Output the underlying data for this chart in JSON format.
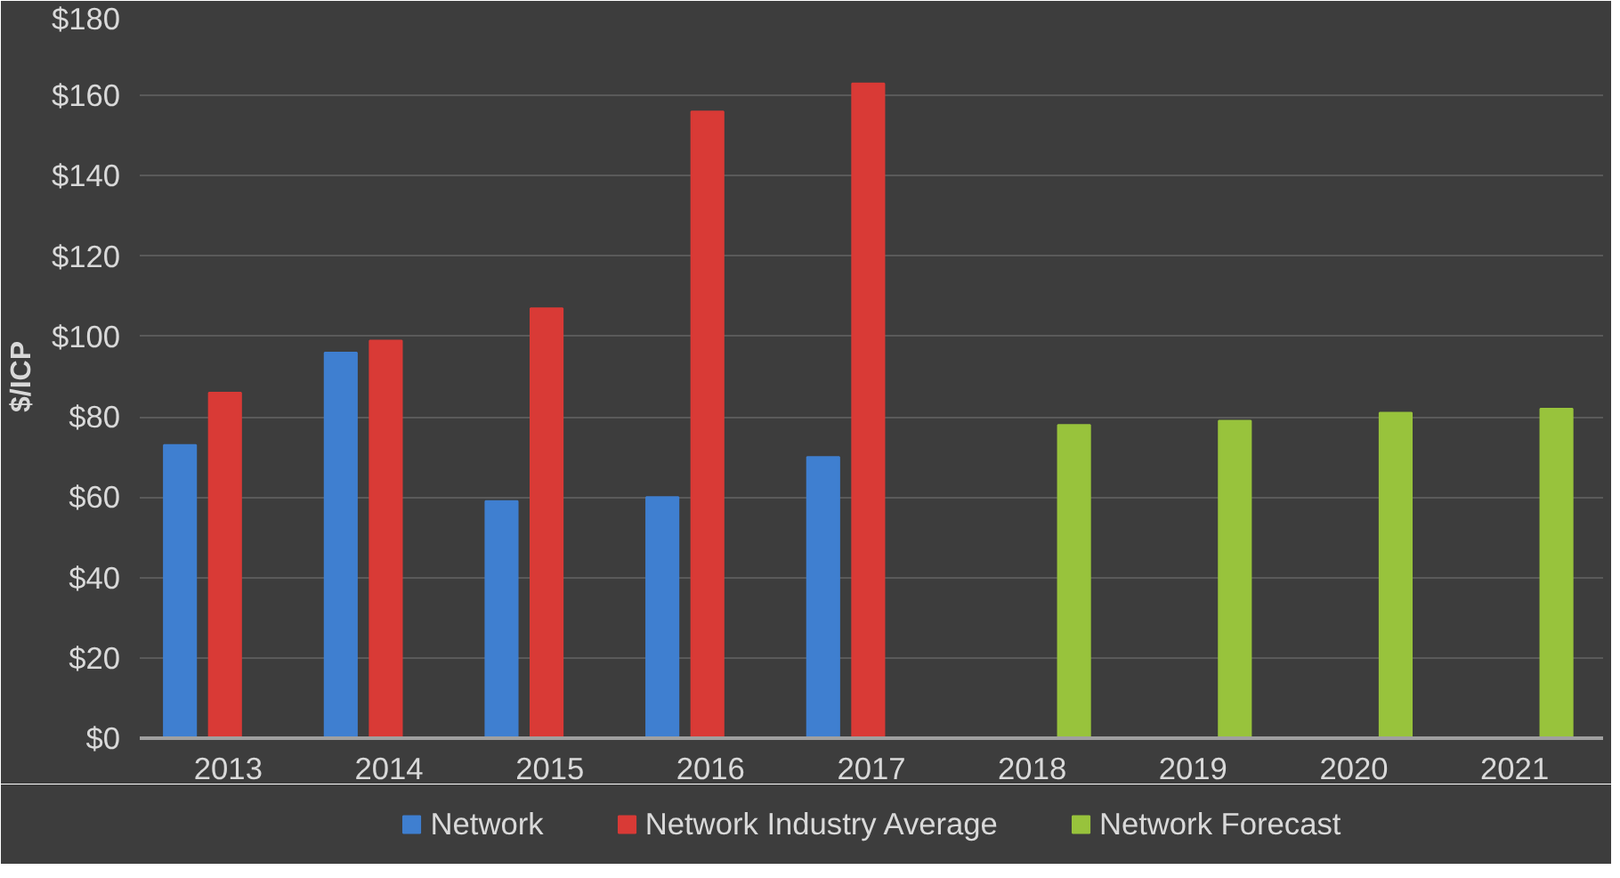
{
  "chart_data": {
    "type": "bar",
    "ylabel": "$/ICP",
    "categories": [
      "2013",
      "2014",
      "2015",
      "2016",
      "2017",
      "2018",
      "2019",
      "2020",
      "2021"
    ],
    "series": [
      {
        "name": "Network",
        "color": "#3f7fd0",
        "values": [
          73,
          96,
          59,
          60,
          70,
          null,
          null,
          null,
          null
        ]
      },
      {
        "name": "Network Industry Average",
        "color": "#d93a36",
        "values": [
          86,
          99,
          107,
          156,
          163,
          null,
          null,
          null,
          null
        ]
      },
      {
        "name": "Network Forecast",
        "color": "#98c33c",
        "values": [
          null,
          null,
          null,
          null,
          null,
          78,
          79,
          81,
          82
        ]
      }
    ],
    "ylim": [
      0,
      180
    ],
    "yticks": [
      {
        "value": 0,
        "label": "$0"
      },
      {
        "value": 20,
        "label": "$20"
      },
      {
        "value": 40,
        "label": "$40"
      },
      {
        "value": 60,
        "label": "$60"
      },
      {
        "value": 80,
        "label": "$80"
      },
      {
        "value": 100,
        "label": "$100"
      },
      {
        "value": 120,
        "label": "$120"
      },
      {
        "value": 140,
        "label": "$140"
      },
      {
        "value": 160,
        "label": "$160"
      },
      {
        "value": 180,
        "label": "$180"
      }
    ],
    "grid": "y",
    "legend": "bottom"
  }
}
